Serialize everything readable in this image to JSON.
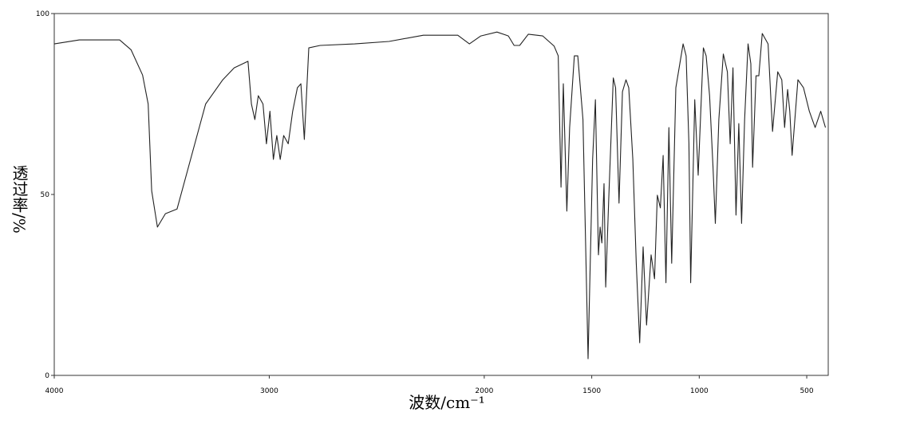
{
  "chart_data": {
    "type": "line",
    "x_label": "波数/cm⁻¹",
    "y_label": "透过率/%",
    "x": [
      4000,
      3883,
      3696,
      3643,
      3589,
      3563,
      3547,
      3520,
      3483,
      3429,
      3376,
      3296,
      3216,
      3163,
      3099,
      3083,
      3067,
      3051,
      3029,
      3013,
      2997,
      2981,
      2965,
      2949,
      2933,
      2912,
      2891,
      2869,
      2853,
      2837,
      2816,
      2763,
      2603,
      2443,
      2283,
      2123,
      2069,
      2016,
      1941,
      1888,
      1861,
      1835,
      1795,
      1728,
      1675,
      1656,
      1643,
      1632,
      1616,
      1603,
      1581,
      1565,
      1541,
      1517,
      1496,
      1483,
      1469,
      1461,
      1453,
      1443,
      1435,
      1421,
      1400,
      1389,
      1373,
      1357,
      1341,
      1328,
      1309,
      1293,
      1277,
      1261,
      1245,
      1224,
      1208,
      1195,
      1181,
      1168,
      1155,
      1141,
      1128,
      1109,
      1075,
      1061,
      1048,
      1040,
      1021,
      1005,
      981,
      968,
      952,
      936,
      925,
      909,
      888,
      869,
      856,
      843,
      829,
      816,
      803,
      789,
      773,
      760,
      752,
      736,
      723,
      707,
      680,
      659,
      635,
      616,
      603,
      589,
      579,
      568,
      541,
      515,
      488,
      461,
      435,
      413
    ],
    "values": [
      91.6,
      92.7,
      92.7,
      90,
      83,
      75,
      51,
      41,
      44.7,
      46,
      57.5,
      75,
      81.7,
      85,
      86.8,
      75,
      70.7,
      77.3,
      75,
      64,
      73,
      59.7,
      66.3,
      59.7,
      66.3,
      64,
      73,
      79.5,
      80.6,
      65.2,
      90.5,
      91.2,
      91.6,
      92.3,
      94,
      94,
      91.6,
      93.8,
      94.9,
      93.8,
      91.2,
      91.2,
      94.3,
      93.8,
      91,
      88.3,
      52,
      80.6,
      45.4,
      68.5,
      88.3,
      88.3,
      70.7,
      4.6,
      59.7,
      76.2,
      33.3,
      41,
      36.6,
      53,
      24.4,
      48.7,
      82.2,
      79.5,
      47.6,
      78.4,
      81.7,
      79.5,
      59.7,
      31,
      9,
      35.5,
      13.9,
      33.3,
      26.7,
      49.8,
      46.3,
      60.8,
      25.6,
      68.5,
      31,
      79.5,
      91.6,
      88.3,
      64,
      25.6,
      76.2,
      55.3,
      90.5,
      88.3,
      77.3,
      57.5,
      42,
      70.7,
      88.8,
      83.9,
      64,
      85,
      44.3,
      69.6,
      42,
      70.7,
      91.6,
      86.1,
      57.5,
      82.8,
      82.8,
      94.5,
      91.6,
      67.4,
      83.9,
      81.7,
      68.5,
      79,
      73,
      60.8,
      81.7,
      79.5,
      73,
      68.5,
      73,
      68.5
    ],
    "color": "#222222",
    "xlim": [
      4000,
      400
    ],
    "ylim": [
      0,
      100
    ],
    "xticks": [
      4000,
      3000,
      2000,
      1500,
      1000,
      500
    ],
    "yticks": [
      0,
      50,
      100
    ]
  }
}
